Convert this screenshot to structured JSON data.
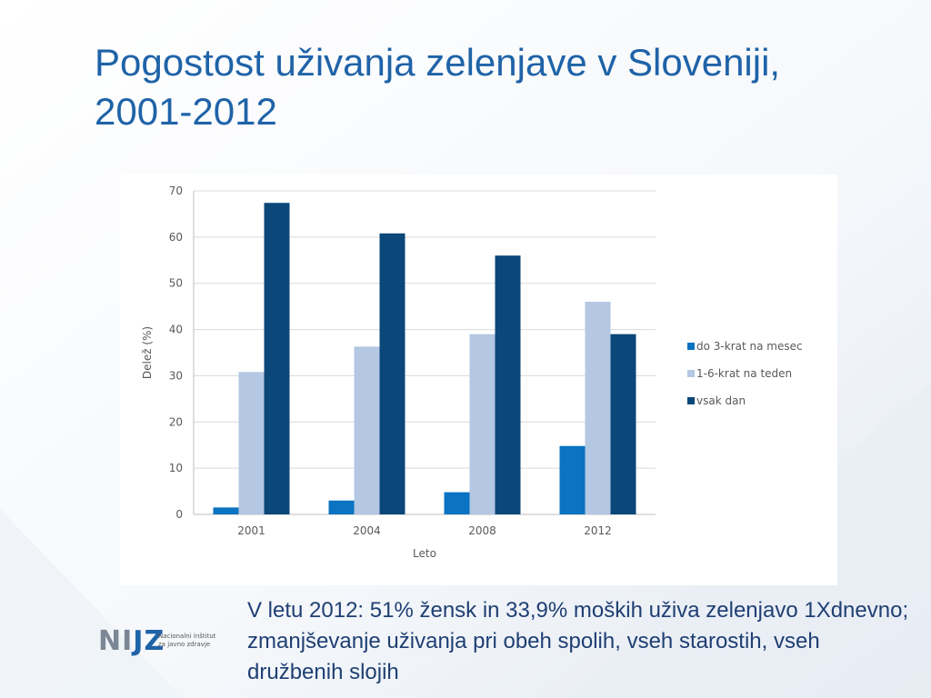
{
  "slide": {
    "title": "Pogostost uživanja zelenjave v Sloveniji, 2001-2012",
    "caption": "V letu 2012: 51% žensk in 33,9% moških uživa zelenjavo 1Xdnevno; zmanjševanje uživanja pri obeh spolih, vseh starostih, vseh družbenih slojih"
  },
  "logo": {
    "mark_part1": "NI",
    "mark_part2": "JZ",
    "line1": "Nacionalni inštitut",
    "line2": "za javno zdravje"
  },
  "chart_data": {
    "type": "bar",
    "categories": [
      "2001",
      "2004",
      "2008",
      "2012"
    ],
    "series": [
      {
        "name": "do 3-krat na mesec",
        "color": "#0a73c2",
        "values": [
          1.5,
          3,
          4.8,
          14.8
        ]
      },
      {
        "name": "1-6-krat na teden",
        "color": "#b4c7e3",
        "values": [
          30.8,
          36.3,
          39,
          46
        ]
      },
      {
        "name": "vsak dan",
        "color": "#0b4779",
        "values": [
          67.4,
          60.8,
          56,
          39
        ]
      }
    ],
    "xlabel": "Leto",
    "ylabel": "Delež (%)",
    "ylim": [
      0,
      70
    ],
    "yticks": [
      "0",
      "10",
      "20",
      "30",
      "40",
      "50",
      "60",
      "70"
    ],
    "grid": true,
    "legend_position": "right"
  }
}
